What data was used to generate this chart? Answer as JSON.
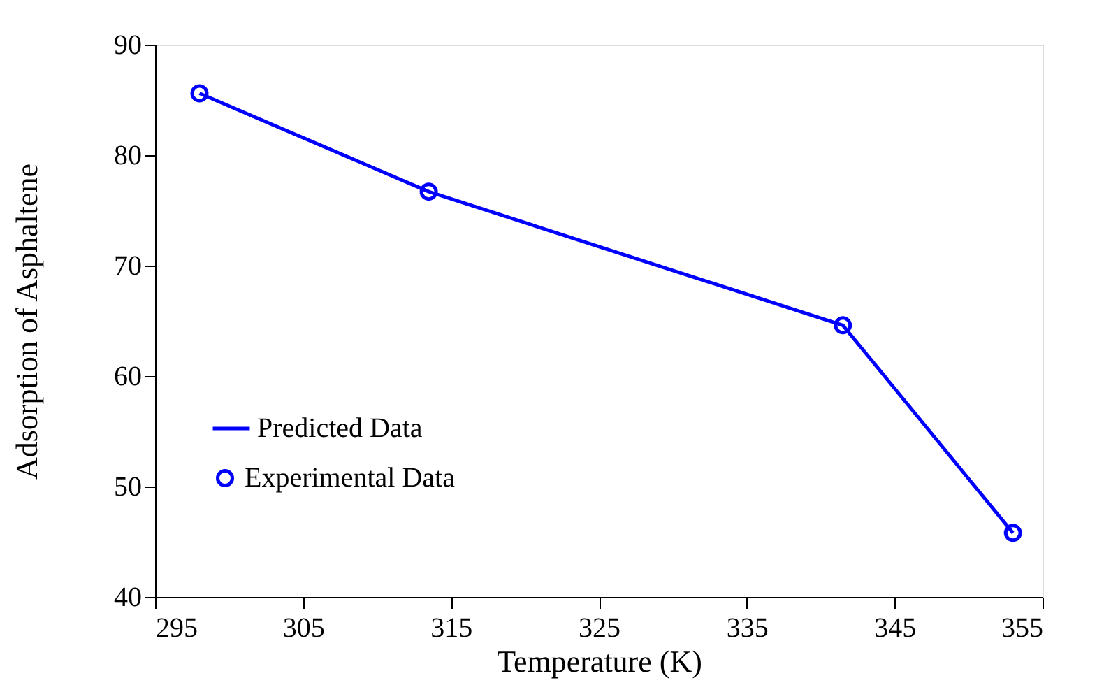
{
  "chart_data": {
    "type": "line",
    "xlabel": "Temperature (K)",
    "ylabel": "Adsorption of Asphaltene",
    "x": [
      298,
      313.5,
      341.5,
      353
    ],
    "series": [
      {
        "name": "Predicted Data",
        "type": "line",
        "color": "#0000ff",
        "marker": "none",
        "values": [
          85.6,
          76.7,
          64.6,
          45.8
        ]
      },
      {
        "name": "Experimental Data",
        "type": "scatter",
        "color": "#0000ff",
        "marker": "circle",
        "values": [
          85.6,
          76.7,
          64.6,
          45.8
        ]
      }
    ],
    "xlim": [
      295,
      355
    ],
    "xticks": [
      295,
      305,
      315,
      325,
      335,
      345,
      355
    ],
    "ylim": [
      40,
      90
    ],
    "yticks": [
      40,
      50,
      60,
      70,
      80,
      90
    ],
    "grid": false,
    "legend": "bottom left"
  }
}
